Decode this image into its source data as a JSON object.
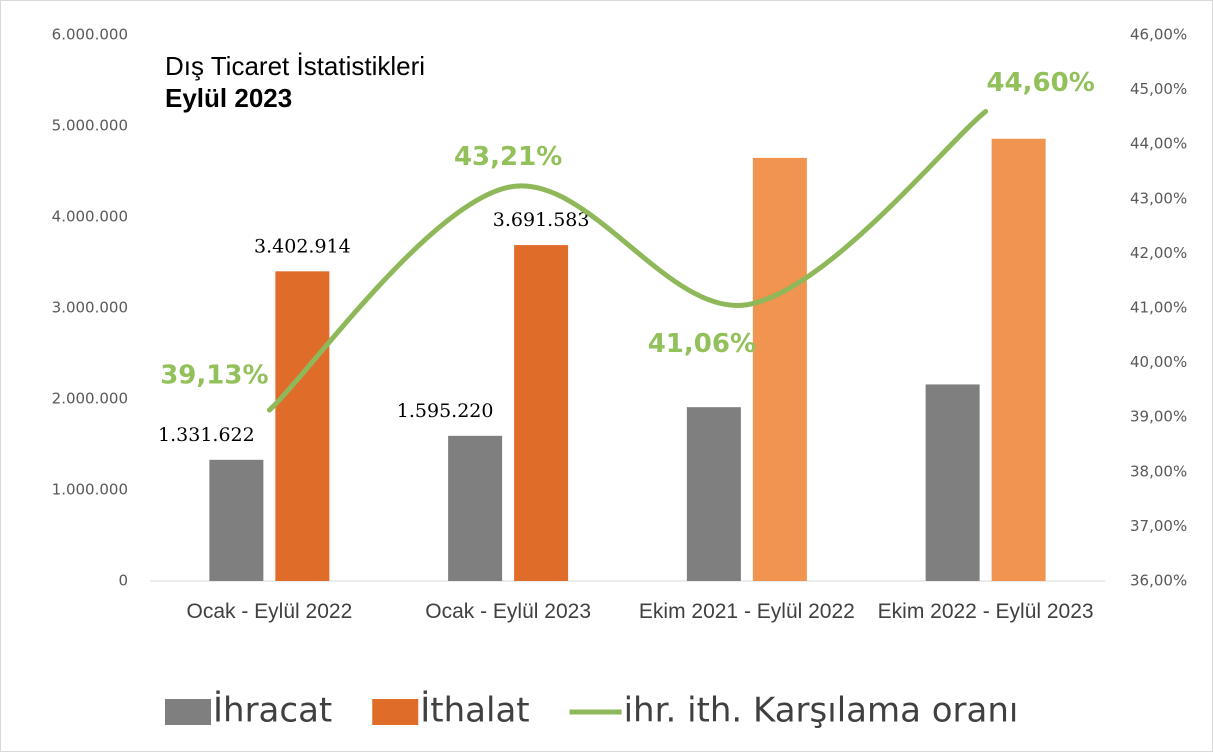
{
  "chart_data": {
    "type": "bar-line",
    "title": "Dış Ticaret İstatistikleri",
    "subtitle": "Eylül 2023",
    "categories": [
      "Ocak - Eylül 2022",
      "Ocak - Eylül 2023",
      "Ekim 2021 - Eylül 2022",
      "Ekim 2022 - Eylül 2023"
    ],
    "series": [
      {
        "name": "İhracat",
        "type": "bar",
        "color": "#7f7f80",
        "values": [
          1331622,
          1595220,
          1910000,
          2160000
        ],
        "value_labels": [
          "1.331.622",
          "1.595.220",
          null,
          null
        ]
      },
      {
        "name": "İthalat",
        "type": "bar",
        "color": "#e06c2a",
        "colors": [
          "#e06c2a",
          "#e06c2a",
          "#f0944f",
          "#f0944f"
        ],
        "values": [
          3402914,
          3691583,
          4650000,
          4860000
        ],
        "value_labels": [
          "3.402.914",
          "3.691.583",
          null,
          null
        ]
      },
      {
        "name": "ihr. ith. Karşılama oranı",
        "type": "line",
        "axis": "y2",
        "color": "#8fb85a",
        "values": [
          39.13,
          43.21,
          41.06,
          44.6
        ],
        "value_labels": [
          "39,13%",
          "43,21%",
          "41,06%",
          "44,60%"
        ]
      }
    ],
    "ylim": [
      0,
      6000000
    ],
    "yticks": [
      0,
      {
        "value": 1000000,
        "label": "1.000.000"
      },
      {
        "value": 2000000,
        "label": "2.000.000"
      },
      {
        "value": 3000000,
        "label": "3.000.000"
      },
      {
        "value": 4000000,
        "label": "4.000.000"
      },
      {
        "value": 5000000,
        "label": "5.000.000"
      },
      {
        "value": 6000000,
        "label": "6.000.000"
      }
    ],
    "y2lim": [
      36,
      46
    ],
    "y2ticks": [
      {
        "value": 36,
        "label": "36,00%"
      },
      {
        "value": 37,
        "label": "37,00%"
      },
      {
        "value": 38,
        "label": "38,00%"
      },
      {
        "value": 39,
        "label": "39,00%"
      },
      {
        "value": 40,
        "label": "40,00%"
      },
      {
        "value": 41,
        "label": "41,00%"
      },
      {
        "value": 42,
        "label": "42,00%"
      },
      {
        "value": 43,
        "label": "43,00%"
      },
      {
        "value": 44,
        "label": "44,00%"
      },
      {
        "value": 45,
        "label": "45,00%"
      },
      {
        "value": 46,
        "label": "46,00%"
      }
    ],
    "legend": "bottom"
  }
}
